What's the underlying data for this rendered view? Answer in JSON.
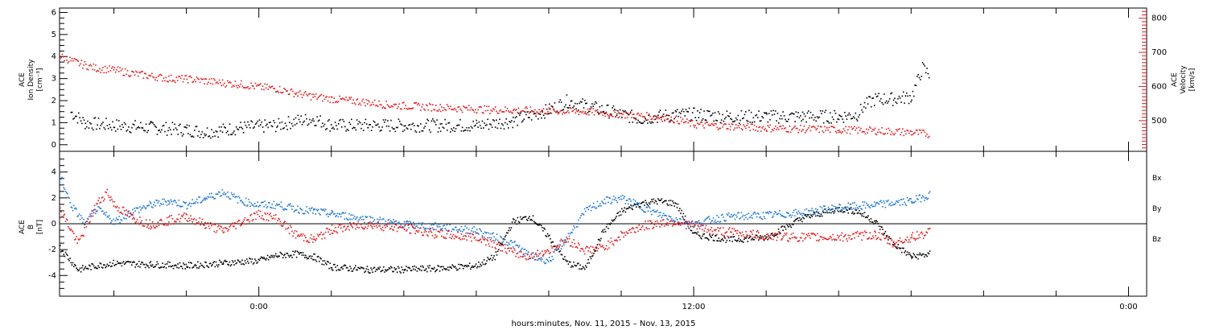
{
  "chart_data": [
    {
      "type": "scatter",
      "ylabel": [
        "ACE",
        "Ion Density",
        "[cm⁻³]"
      ],
      "ylabel_right": [
        "ACE",
        "Velocity",
        "[km/s]"
      ],
      "ylim": [
        -0.3,
        6.2
      ],
      "ylim_right": [
        410,
        830
      ],
      "yticks": [
        0,
        1,
        2,
        3,
        4,
        5,
        6
      ],
      "yticks_right": [
        500,
        600,
        700,
        800
      ],
      "series": [
        {
          "key": "density",
          "color": "#000000",
          "axis": "left",
          "points": [
            [
              -5.2,
              1.5
            ],
            [
              -4.8,
              1.0
            ],
            [
              -4.0,
              0.9
            ],
            [
              -3.0,
              0.8
            ],
            [
              -2.0,
              0.7
            ],
            [
              -1.5,
              0.6
            ],
            [
              -1.0,
              0.7
            ],
            [
              -0.5,
              0.8
            ],
            [
              0,
              0.85
            ],
            [
              0.5,
              0.9
            ],
            [
              1.0,
              1.1
            ],
            [
              1.5,
              1.2
            ],
            [
              2.0,
              0.9
            ],
            [
              3.0,
              0.9
            ],
            [
              4.0,
              0.9
            ],
            [
              5.0,
              0.9
            ],
            [
              6.0,
              0.9
            ],
            [
              7.0,
              1.1
            ],
            [
              8.0,
              1.6
            ],
            [
              8.5,
              2.0
            ],
            [
              9.0,
              1.8
            ],
            [
              9.5,
              1.6
            ],
            [
              10.0,
              1.4
            ],
            [
              10.5,
              1.2
            ],
            [
              11.0,
              1.3
            ],
            [
              11.5,
              1.4
            ],
            [
              12.0,
              1.4
            ],
            [
              13.0,
              1.3
            ],
            [
              14.0,
              1.3
            ],
            [
              15.0,
              1.3
            ],
            [
              16.0,
              1.3
            ],
            [
              16.5,
              1.4
            ],
            [
              16.7,
              1.8
            ],
            [
              17.0,
              2.1
            ],
            [
              17.5,
              2.1
            ],
            [
              18.0,
              2.2
            ],
            [
              18.3,
              3.5
            ],
            [
              18.5,
              3.2
            ]
          ]
        },
        {
          "key": "velocity",
          "color": "#e31a1c",
          "axis": "right",
          "points": [
            [
              -5.5,
              690
            ],
            [
              -5.0,
              670
            ],
            [
              -4.5,
              655
            ],
            [
              -4.0,
              650
            ],
            [
              -3.5,
              640
            ],
            [
              -3.0,
              632
            ],
            [
              -2.5,
              625
            ],
            [
              -2.0,
              624
            ],
            [
              -1.5,
              618
            ],
            [
              -1.0,
              612
            ],
            [
              -0.5,
              608
            ],
            [
              0,
              600
            ],
            [
              0.5,
              595
            ],
            [
              1.0,
              582
            ],
            [
              1.5,
              572
            ],
            [
              2.0,
              565
            ],
            [
              2.5,
              560
            ],
            [
              3.0,
              555
            ],
            [
              3.5,
              548
            ],
            [
              4.0,
              545
            ],
            [
              5.0,
              540
            ],
            [
              6.0,
              535
            ],
            [
              7.0,
              532
            ],
            [
              8.0,
              530
            ],
            [
              9.0,
              528
            ],
            [
              10.0,
              520
            ],
            [
              11.0,
              512
            ],
            [
              11.5,
              505
            ],
            [
              12.0,
              490
            ],
            [
              13.0,
              485
            ],
            [
              14.0,
              480
            ],
            [
              15.0,
              477
            ],
            [
              16.0,
              475
            ],
            [
              17.0,
              472
            ],
            [
              18.0,
              467
            ],
            [
              18.5,
              462
            ]
          ]
        }
      ]
    },
    {
      "type": "scatter",
      "ylabel": [
        "ACE",
        "B",
        "[nT]"
      ],
      "ylim": [
        -5.6,
        5.6
      ],
      "yticks": [
        -4,
        -2,
        0,
        2,
        4
      ],
      "legend": [
        "Bx",
        "By",
        "Bz"
      ],
      "legend_colors": [
        "#000000",
        "#1f78d4",
        "#e31a1c"
      ],
      "series": [
        {
          "key": "Bx",
          "color": "#000000",
          "points": [
            [
              -5.5,
              -1.8
            ],
            [
              -5.0,
              -3.5
            ],
            [
              -4.5,
              -3.2
            ],
            [
              -4.0,
              -3.0
            ],
            [
              -3.0,
              -3.1
            ],
            [
              -2.0,
              -3.2
            ],
            [
              -1.0,
              -3.0
            ],
            [
              0,
              -2.8
            ],
            [
              0.5,
              -2.4
            ],
            [
              1.0,
              -2.3
            ],
            [
              1.5,
              -2.5
            ],
            [
              2.0,
              -3.3
            ],
            [
              3.0,
              -3.5
            ],
            [
              4.0,
              -3.5
            ],
            [
              5.0,
              -3.4
            ],
            [
              6.0,
              -3.2
            ],
            [
              6.5,
              -2.5
            ],
            [
              7.0,
              0.2
            ],
            [
              7.5,
              0.6
            ],
            [
              8.0,
              -1.0
            ],
            [
              8.5,
              -3.0
            ],
            [
              9.0,
              -3.4
            ],
            [
              9.5,
              -0.5
            ],
            [
              10.0,
              1.0
            ],
            [
              10.5,
              1.6
            ],
            [
              11.0,
              1.8
            ],
            [
              11.5,
              1.6
            ],
            [
              12.0,
              -0.8
            ],
            [
              12.5,
              -1.0
            ],
            [
              13.0,
              -1.2
            ],
            [
              14.0,
              -1.0
            ],
            [
              15.0,
              0.5
            ],
            [
              16.0,
              1.2
            ],
            [
              16.5,
              1.0
            ],
            [
              17.0,
              0.2
            ],
            [
              17.5,
              -1.5
            ],
            [
              18.0,
              -2.5
            ],
            [
              18.5,
              -2.3
            ]
          ]
        },
        {
          "key": "By",
          "color": "#1f78d4",
          "points": [
            [
              -5.5,
              3.8
            ],
            [
              -5.2,
              1.5
            ],
            [
              -4.8,
              0.0
            ],
            [
              -4.5,
              1.2
            ],
            [
              -4.0,
              0.2
            ],
            [
              -3.5,
              1.0
            ],
            [
              -3.0,
              1.5
            ],
            [
              -2.5,
              1.8
            ],
            [
              -2.0,
              1.5
            ],
            [
              -1.5,
              2.0
            ],
            [
              -1.0,
              2.5
            ],
            [
              -0.5,
              1.8
            ],
            [
              0,
              1.5
            ],
            [
              0.5,
              1.5
            ],
            [
              1.0,
              1.2
            ],
            [
              1.5,
              1.0
            ],
            [
              2.0,
              0.8
            ],
            [
              3.0,
              0.4
            ],
            [
              4.0,
              0.0
            ],
            [
              5.0,
              -0.2
            ],
            [
              6.0,
              -0.5
            ],
            [
              6.5,
              -1.0
            ],
            [
              7.0,
              -1.5
            ],
            [
              7.5,
              -2.5
            ],
            [
              8.0,
              -2.8
            ],
            [
              8.5,
              -1.0
            ],
            [
              9.0,
              1.0
            ],
            [
              9.5,
              1.8
            ],
            [
              10.0,
              2.0
            ],
            [
              10.5,
              1.4
            ],
            [
              11.0,
              0.8
            ],
            [
              11.5,
              0.4
            ],
            [
              12.0,
              0.0
            ],
            [
              12.5,
              0.4
            ],
            [
              13.0,
              0.6
            ],
            [
              14.0,
              0.7
            ],
            [
              15.0,
              0.9
            ],
            [
              16.0,
              1.3
            ],
            [
              17.0,
              1.5
            ],
            [
              18.0,
              1.8
            ],
            [
              18.5,
              2.3
            ]
          ]
        },
        {
          "key": "Bz",
          "color": "#e31a1c",
          "points": [
            [
              -5.5,
              1.2
            ],
            [
              -5.0,
              -1.5
            ],
            [
              -4.5,
              1.5
            ],
            [
              -4.2,
              2.5
            ],
            [
              -4.0,
              1.5
            ],
            [
              -3.5,
              0.5
            ],
            [
              -3.0,
              0.0
            ],
            [
              -2.5,
              0.3
            ],
            [
              -2.0,
              0.6
            ],
            [
              -1.5,
              0.0
            ],
            [
              -1.0,
              -0.5
            ],
            [
              -0.5,
              0.2
            ],
            [
              0,
              0.8
            ],
            [
              0.5,
              0.4
            ],
            [
              1.0,
              -0.8
            ],
            [
              1.5,
              -1.2
            ],
            [
              2.0,
              -0.4
            ],
            [
              3.0,
              0.0
            ],
            [
              4.0,
              -0.3
            ],
            [
              5.0,
              -0.8
            ],
            [
              6.0,
              -1.0
            ],
            [
              6.5,
              -1.5
            ],
            [
              7.0,
              -2.2
            ],
            [
              7.5,
              -2.5
            ],
            [
              8.0,
              -2.0
            ],
            [
              8.5,
              -1.2
            ],
            [
              9.0,
              -2.0
            ],
            [
              9.5,
              -1.8
            ],
            [
              10.0,
              -0.8
            ],
            [
              10.5,
              -0.2
            ],
            [
              11.0,
              0.1
            ],
            [
              11.5,
              0.2
            ],
            [
              12.0,
              -0.1
            ],
            [
              12.5,
              -0.5
            ],
            [
              13.0,
              -0.6
            ],
            [
              14.0,
              -0.9
            ],
            [
              15.0,
              -1.0
            ],
            [
              16.0,
              -1.0
            ],
            [
              17.0,
              -0.8
            ],
            [
              17.5,
              -1.5
            ],
            [
              18.0,
              -1.0
            ],
            [
              18.5,
              -0.6
            ]
          ]
        }
      ]
    }
  ],
  "xaxis": {
    "range_hours": [
      -5.5,
      24.5
    ],
    "tick_labels": [
      "0:00",
      "12:00",
      "0:00"
    ],
    "tick_hours": [
      0,
      12,
      24
    ],
    "label": "hours:minutes, Nov. 11, 2015 – Nov. 13, 2015"
  }
}
